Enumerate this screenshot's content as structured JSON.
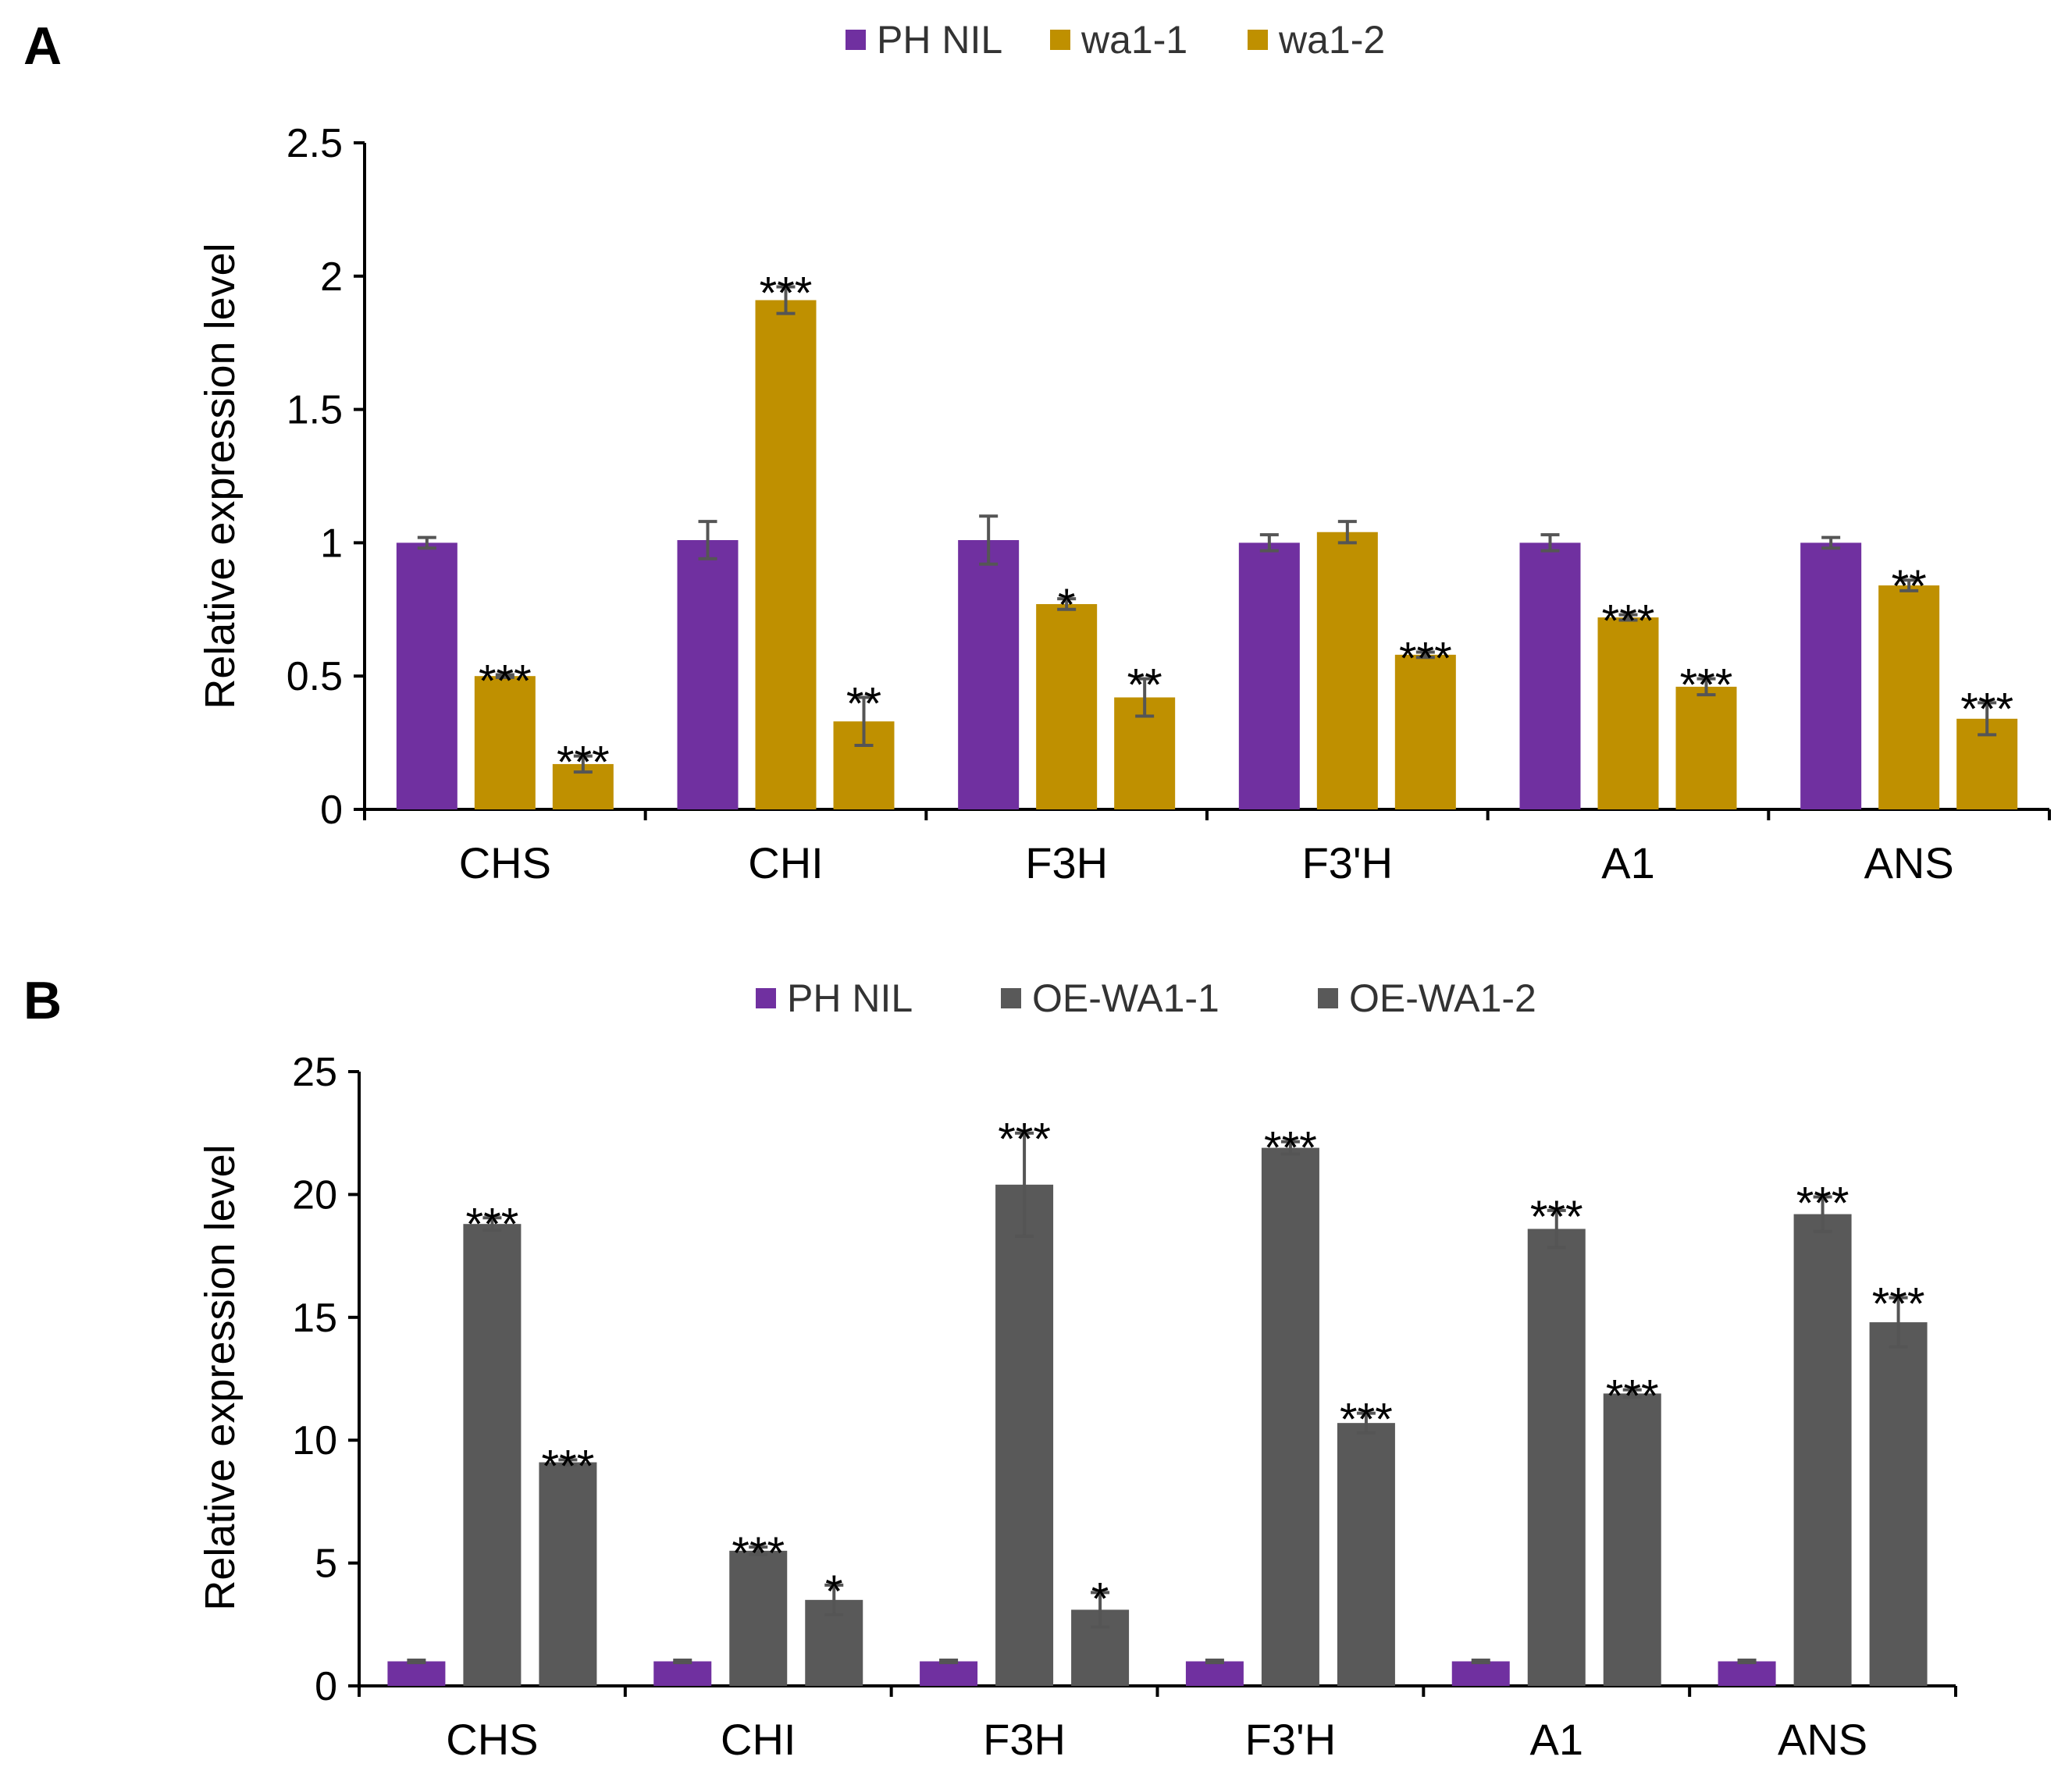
{
  "chart_data": [
    {
      "type": "bar",
      "panel_label": "A",
      "title": "",
      "xlabel": "",
      "ylabel": "Relative expression level",
      "ylim": [
        0,
        2.5
      ],
      "yticks": [
        0,
        0.5,
        1,
        1.5,
        2,
        2.5
      ],
      "ytick_labels": [
        "0",
        "0.5",
        "1",
        "1.5",
        "2",
        "2.5"
      ],
      "legend_position": "top",
      "categories": [
        "CHS",
        "CHI",
        "F3H",
        "F3'H",
        "A1",
        "ANS"
      ],
      "series": [
        {
          "name": "PH NIL",
          "color": "#7030a0",
          "values": [
            1.0,
            1.01,
            1.01,
            1.0,
            1.0,
            1.0
          ],
          "errors": [
            0.02,
            0.07,
            0.09,
            0.03,
            0.03,
            0.02
          ],
          "sig": [
            "",
            "",
            "",
            "",
            "",
            ""
          ]
        },
        {
          "name": "wa1-1",
          "color": "#bf9000",
          "values": [
            0.5,
            1.91,
            0.77,
            1.04,
            0.72,
            0.84
          ],
          "errors": [
            0.005,
            0.05,
            0.02,
            0.04,
            0.01,
            0.02
          ],
          "sig": [
            "***",
            "***",
            "*",
            "",
            "***",
            "**"
          ]
        },
        {
          "name": "wa1-2",
          "color": "#bf9000",
          "values": [
            0.17,
            0.33,
            0.42,
            0.58,
            0.46,
            0.34
          ],
          "errors": [
            0.03,
            0.09,
            0.07,
            0.01,
            0.03,
            0.06
          ],
          "sig": [
            "***",
            "**",
            "**",
            "***",
            "***",
            "***"
          ]
        }
      ]
    },
    {
      "type": "bar",
      "panel_label": "B",
      "title": "",
      "xlabel": "",
      "ylabel": "Relative expression level",
      "ylim": [
        0,
        25
      ],
      "yticks": [
        0,
        5,
        10,
        15,
        20,
        25
      ],
      "ytick_labels": [
        "0",
        "5",
        "10",
        "15",
        "20",
        "25"
      ],
      "legend_position": "top",
      "categories": [
        "CHS",
        "CHI",
        "F3H",
        "F3'H",
        "A1",
        "ANS"
      ],
      "series": [
        {
          "name": "PH NIL",
          "color": "#7030a0",
          "values": [
            1.0,
            1.0,
            1.0,
            1.0,
            1.0,
            1.0
          ],
          "errors": [
            0.05,
            0.05,
            0.05,
            0.05,
            0.05,
            0.05
          ],
          "sig": [
            "",
            "",
            "",
            "",
            "",
            ""
          ]
        },
        {
          "name": "OE-WA1-1",
          "color": "#595959",
          "values": [
            18.8,
            5.5,
            20.4,
            21.9,
            18.6,
            19.2
          ],
          "errors": [
            0.25,
            0.15,
            2.1,
            0.25,
            0.75,
            0.7
          ],
          "sig": [
            "***",
            "***",
            "***",
            "***",
            "***",
            "***"
          ]
        },
        {
          "name": "OE-WA1-2",
          "color": "#595959",
          "values": [
            9.1,
            3.5,
            3.1,
            10.7,
            11.9,
            14.8
          ],
          "errors": [
            0.1,
            0.6,
            0.7,
            0.4,
            0.15,
            1.0
          ],
          "sig": [
            "***",
            "*",
            "*",
            "***",
            "***",
            "***"
          ]
        }
      ]
    }
  ]
}
